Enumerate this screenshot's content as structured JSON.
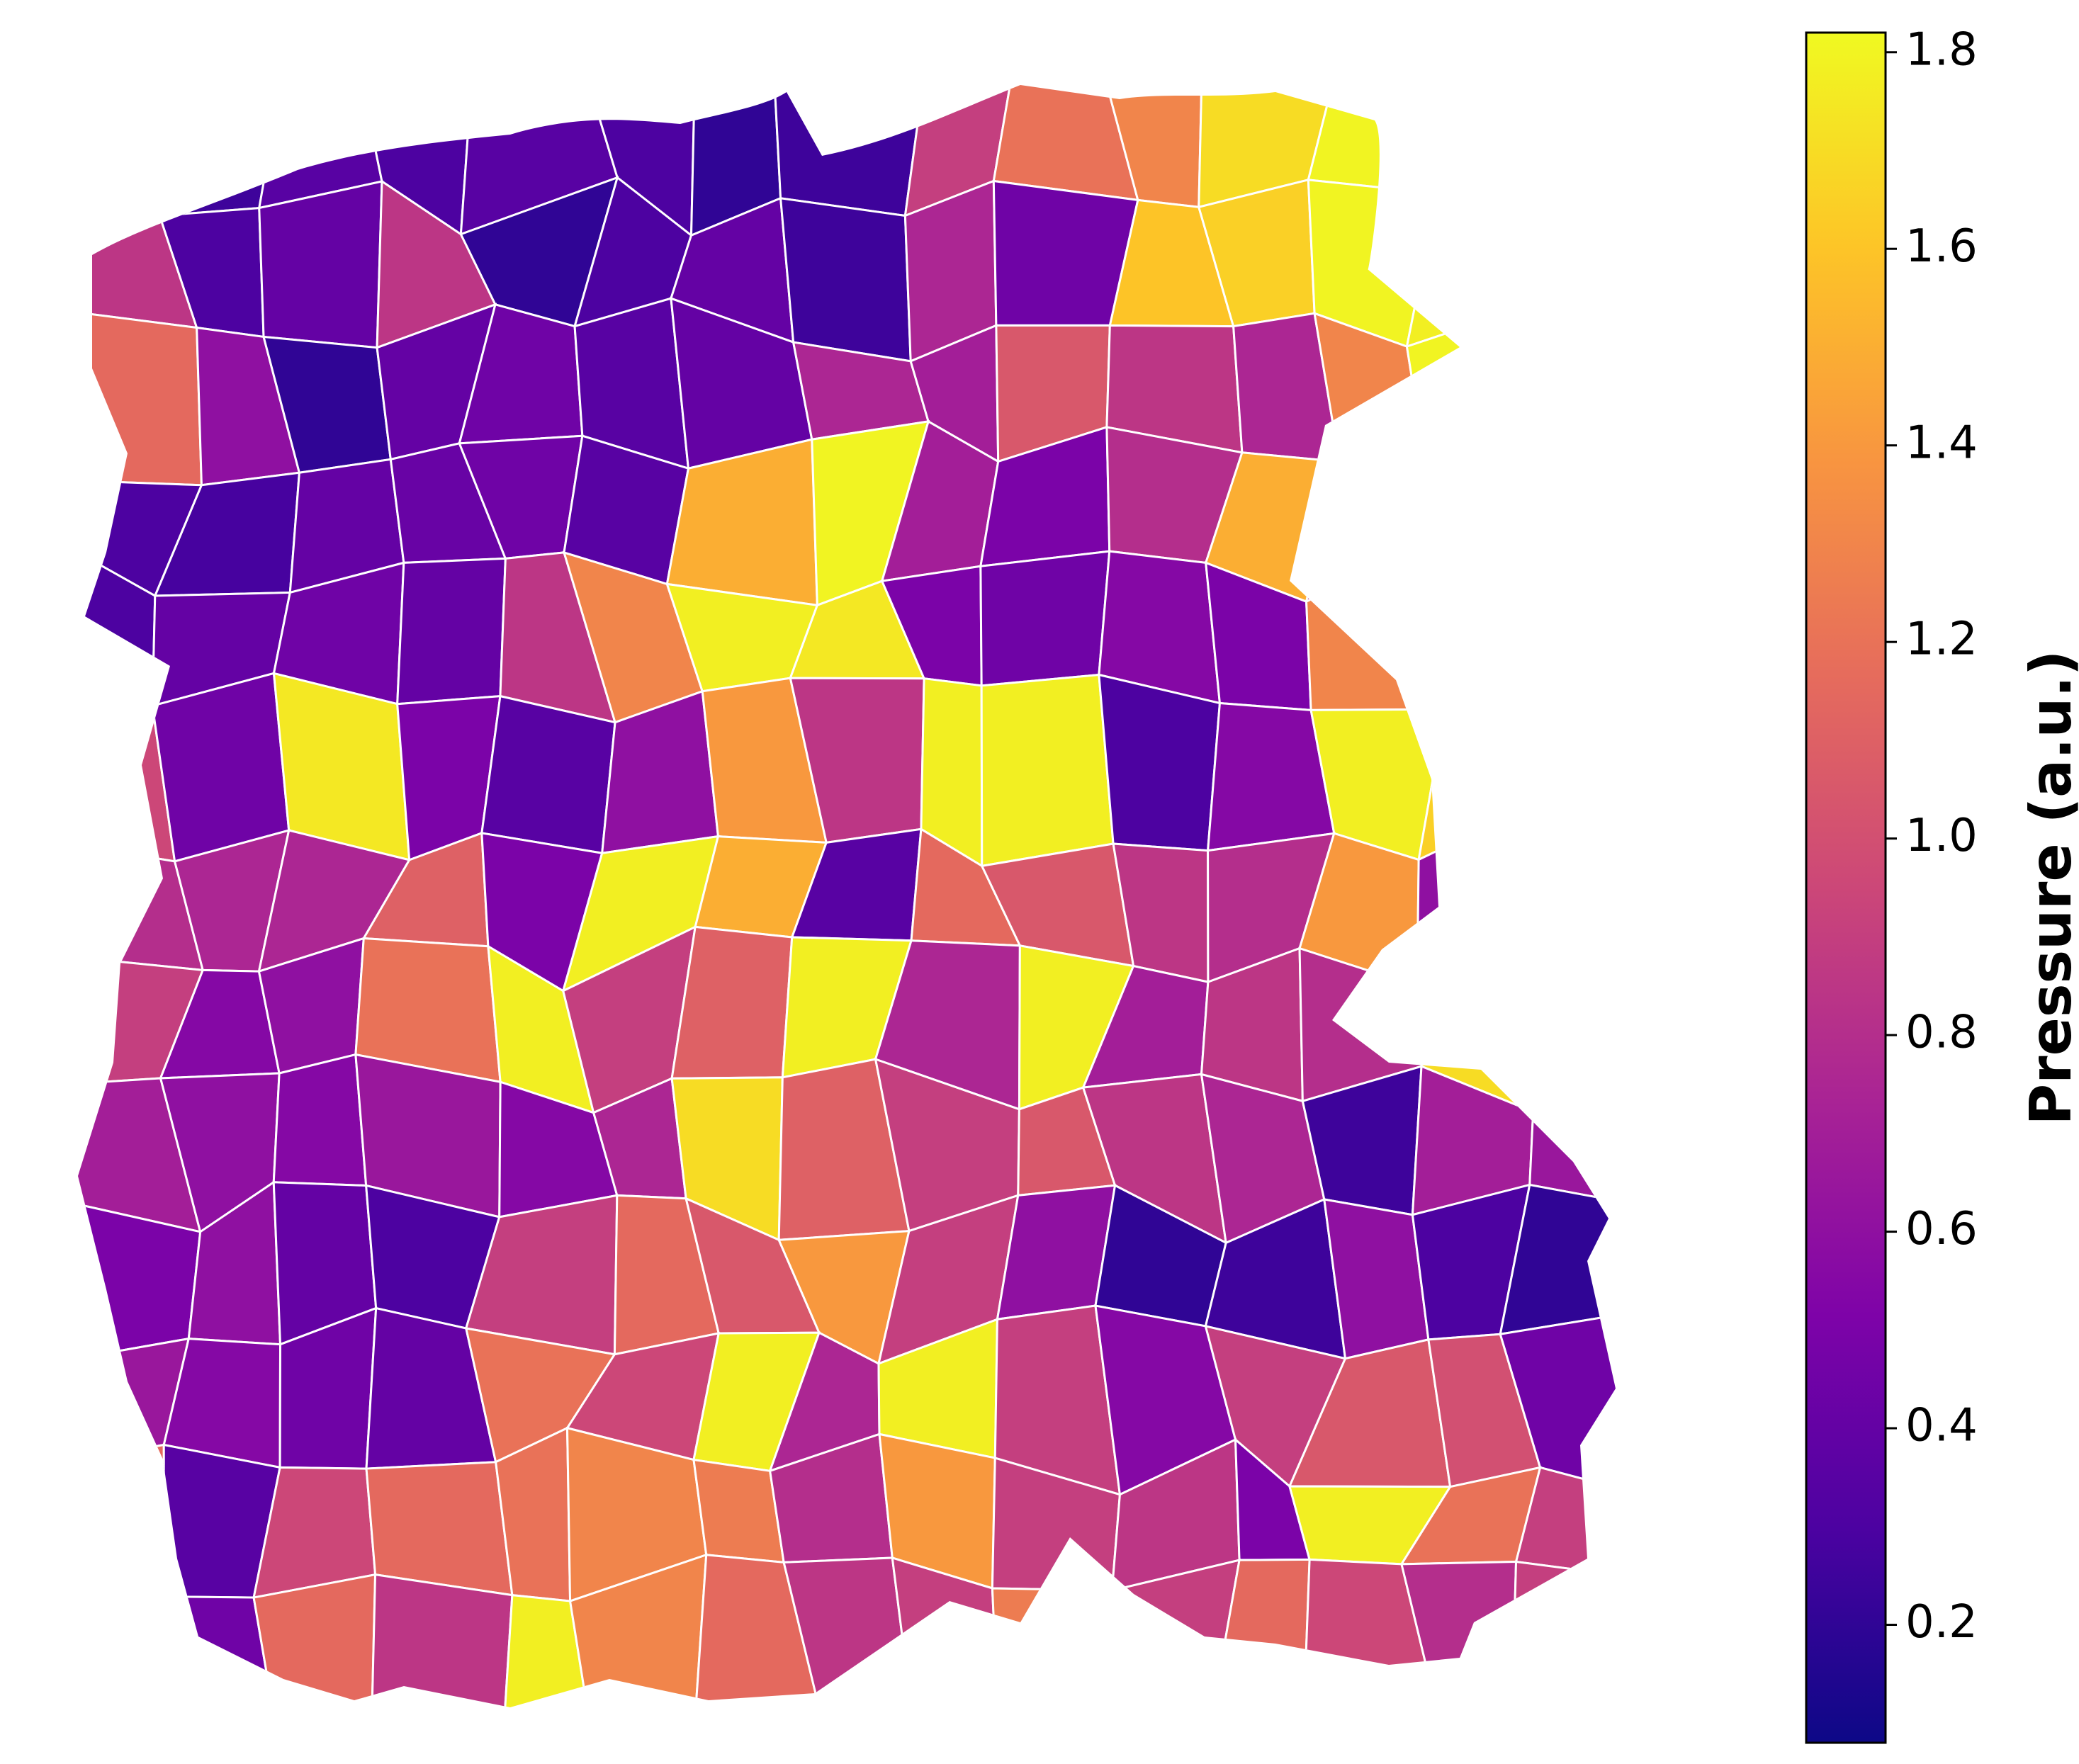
{
  "chart_data": {
    "type": "heatmap",
    "title": "",
    "xlabel": "",
    "ylabel": "",
    "colormap": "plasma",
    "colorbar": {
      "label": "Pressure (a.u.)",
      "vmin": 0.08,
      "vmax": 1.82,
      "ticks": [
        0.2,
        0.4,
        0.6,
        0.8,
        1.0,
        1.2,
        1.4,
        1.6,
        1.8
      ],
      "tick_labels": [
        "0.2",
        "0.4",
        "0.6",
        "0.8",
        "1.0",
        "1.2",
        "1.4",
        "1.6",
        "1.8"
      ],
      "placement": "right"
    },
    "grid": false,
    "axes_visible": false,
    "cell_border_color": "#ffffff",
    "hole_in_tissue": true,
    "cells": [
      {
        "p": 0.2
      },
      {
        "p": 0.25
      },
      {
        "p": 0.35
      },
      {
        "p": 0.3
      },
      {
        "p": 0.35
      },
      {
        "p": 0.3
      },
      {
        "p": 0.2
      },
      {
        "p": 0.25
      },
      {
        "p": 0.9
      },
      {
        "p": 1.2
      },
      {
        "p": 1.3
      },
      {
        "p": 1.7
      },
      {
        "p": 1.8
      },
      {
        "p": 1.78
      },
      {
        "p": 1.75
      },
      {
        "p": 0.85
      },
      {
        "p": 0.3
      },
      {
        "p": 0.4
      },
      {
        "p": 0.85
      },
      {
        "p": 0.2
      },
      {
        "p": 0.3
      },
      {
        "p": 0.4
      },
      {
        "p": 0.25
      },
      {
        "p": 0.75
      },
      {
        "p": 0.45
      },
      {
        "p": 1.6
      },
      {
        "p": 1.65
      },
      {
        "p": 1.8
      },
      {
        "p": 1.78
      },
      {
        "p": 1.35
      },
      {
        "p": 1.15
      },
      {
        "p": 0.6
      },
      {
        "p": 0.2
      },
      {
        "p": 0.4
      },
      {
        "p": 0.45
      },
      {
        "p": 0.35
      },
      {
        "p": 0.4
      },
      {
        "p": 0.75
      },
      {
        "p": 0.7
      },
      {
        "p": 1.05
      },
      {
        "p": 0.85
      },
      {
        "p": 0.75
      },
      {
        "p": 1.3
      },
      {
        "p": 1.8
      },
      {
        "p": 0.22
      },
      {
        "p": 0.3
      },
      {
        "p": 0.28
      },
      {
        "p": 0.4
      },
      {
        "p": 0.42
      },
      {
        "p": 0.45
      },
      {
        "p": 0.35
      },
      {
        "p": 1.5
      },
      {
        "p": 1.8
      },
      {
        "p": 0.7
      },
      {
        "p": 0.5
      },
      {
        "p": 0.8
      },
      {
        "p": 1.5
      },
      {
        "p": 0.75
      },
      {
        "p": 1.55
      },
      {
        "p": 0.7
      },
      {
        "p": 0.3
      },
      {
        "p": 0.4
      },
      {
        "p": 0.45
      },
      {
        "p": 0.4
      },
      {
        "p": 0.85
      },
      {
        "p": 1.3
      },
      {
        "p": 1.78
      },
      {
        "p": 1.75
      },
      {
        "p": 0.5
      },
      {
        "p": 0.45
      },
      {
        "p": 0.55
      },
      {
        "p": 0.5
      },
      {
        "p": 1.3
      },
      {
        "p": 1.1
      },
      {
        "p": 1.4
      },
      {
        "p": 0.95
      },
      {
        "p": 0.45
      },
      {
        "p": 1.75
      },
      {
        "p": 0.5
      },
      {
        "p": 0.35
      },
      {
        "p": 0.6
      },
      {
        "p": 1.4
      },
      {
        "p": 0.85
      },
      {
        "p": 1.78
      },
      {
        "p": 1.78
      },
      {
        "p": 0.3
      },
      {
        "p": 0.55
      },
      {
        "p": 1.78
      },
      {
        "p": 1.65
      },
      {
        "p": 1.3
      },
      {
        "p": 0.8
      },
      {
        "p": 0.75
      },
      {
        "p": 0.75
      },
      {
        "p": 1.1
      },
      {
        "p": 0.5
      },
      {
        "p": 1.78
      },
      {
        "p": 1.5
      },
      {
        "p": 0.35
      },
      {
        "p": 1.15
      },
      {
        "p": 1.05
      },
      {
        "p": 0.85
      },
      {
        "p": 0.8
      },
      {
        "p": 1.4
      },
      {
        "p": 0.6
      },
      {
        "p": 0.8
      },
      {
        "p": 0.9
      },
      {
        "p": 0.55
      },
      {
        "p": 0.6
      },
      {
        "p": 1.2
      },
      {
        "p": 1.78
      },
      {
        "p": 0.9
      },
      {
        "p": 1.1
      },
      {
        "p": 1.78
      },
      {
        "p": 0.75
      },
      {
        "p": 1.78
      },
      {
        "p": 0.7
      },
      {
        "p": 0.85
      },
      {
        "p": 0.8
      },
      {
        "p": 1.7
      },
      {
        "p": 0.65
      },
      {
        "p": 0.7
      },
      {
        "p": 0.6
      },
      {
        "p": 0.55
      },
      {
        "p": 0.65
      },
      {
        "p": 0.55
      },
      {
        "p": 0.75
      },
      {
        "p": 1.7
      },
      {
        "p": 1.1
      },
      {
        "p": 0.9
      },
      {
        "p": 1.05
      },
      {
        "p": 0.85
      },
      {
        "p": 0.75
      },
      {
        "p": 0.25
      },
      {
        "p": 0.7
      },
      {
        "p": 0.65
      },
      {
        "p": 0.5
      },
      {
        "p": 0.6
      },
      {
        "p": 0.4
      },
      {
        "p": 0.3
      },
      {
        "p": 0.9
      },
      {
        "p": 1.15
      },
      {
        "p": 1.05
      },
      {
        "p": 1.4
      },
      {
        "p": 0.9
      },
      {
        "p": 0.6
      },
      {
        "p": 0.2
      },
      {
        "p": 0.25
      },
      {
        "p": 0.6
      },
      {
        "p": 0.3
      },
      {
        "p": 0.2
      },
      {
        "p": 0.65
      },
      {
        "p": 0.55
      },
      {
        "p": 0.45
      },
      {
        "p": 0.4
      },
      {
        "p": 1.2
      },
      {
        "p": 0.95
      },
      {
        "p": 1.78
      },
      {
        "p": 0.75
      },
      {
        "p": 1.78
      },
      {
        "p": 0.9
      },
      {
        "p": 0.55
      },
      {
        "p": 0.9
      },
      {
        "p": 1.05
      },
      {
        "p": 1.0
      },
      {
        "p": 0.45
      },
      {
        "p": 1.15
      },
      {
        "p": 0.35
      },
      {
        "p": 0.95
      },
      {
        "p": 1.15
      },
      {
        "p": 1.2
      },
      {
        "p": 1.3
      },
      {
        "p": 1.25
      },
      {
        "p": 0.8
      },
      {
        "p": 1.4
      },
      {
        "p": 0.9
      },
      {
        "p": 0.85
      },
      {
        "p": 0.5
      },
      {
        "p": 1.78
      },
      {
        "p": 1.2
      },
      {
        "p": 0.9
      },
      {
        "p": 0.95
      },
      {
        "p": 0.45
      },
      {
        "p": 1.15
      },
      {
        "p": 0.85
      },
      {
        "p": 1.78
      },
      {
        "p": 1.3
      },
      {
        "p": 1.15
      },
      {
        "p": 0.85
      },
      {
        "p": 0.9
      },
      {
        "p": 1.25
      },
      {
        "p": 0.9
      },
      {
        "p": 1.15
      },
      {
        "p": 0.95
      },
      {
        "p": 0.8
      },
      {
        "p": 0.9
      },
      {
        "p": 0.9
      }
    ]
  }
}
